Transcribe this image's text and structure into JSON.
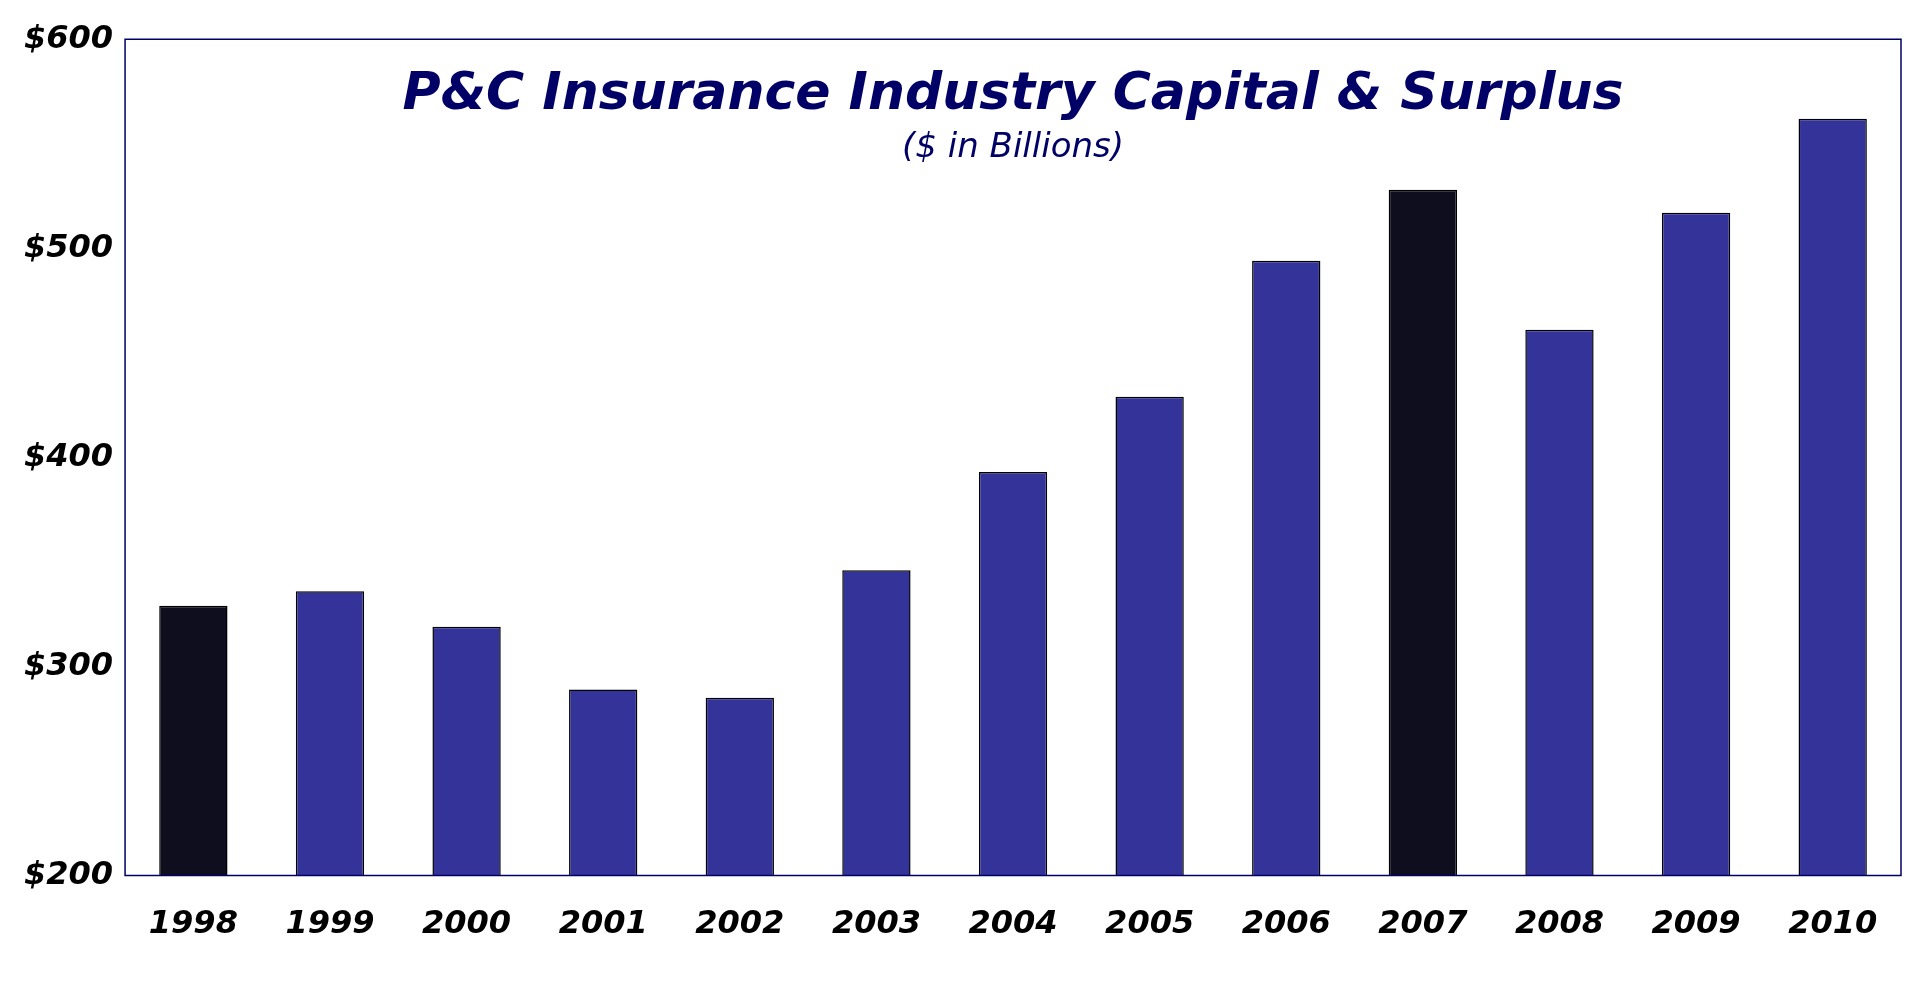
{
  "chart_data": {
    "type": "bar",
    "title": "P&C Insurance Industry Capital & Surplus",
    "subtitle": "($ in Billions)",
    "categories": [
      "1998",
      "1999",
      "2000",
      "2001",
      "2002",
      "2003",
      "2004",
      "2005",
      "2006",
      "2007",
      "2008",
      "2009",
      "2010"
    ],
    "values": [
      329,
      336,
      319,
      289,
      285,
      346,
      393,
      429,
      494,
      528,
      461,
      517,
      562
    ],
    "colors": [
      "#0e0e1e",
      "#333399",
      "#333399",
      "#333399",
      "#333399",
      "#333399",
      "#333399",
      "#333399",
      "#333399",
      "#0e0e1e",
      "#333399",
      "#333399",
      "#333399"
    ],
    "ylim": [
      200,
      600
    ],
    "yticks": [
      {
        "value": 200,
        "label": "$200"
      },
      {
        "value": 300,
        "label": "$300"
      },
      {
        "value": 400,
        "label": "$400"
      },
      {
        "value": 500,
        "label": "$500"
      },
      {
        "value": 600,
        "label": "$600"
      }
    ],
    "grid": false,
    "legend": false
  }
}
